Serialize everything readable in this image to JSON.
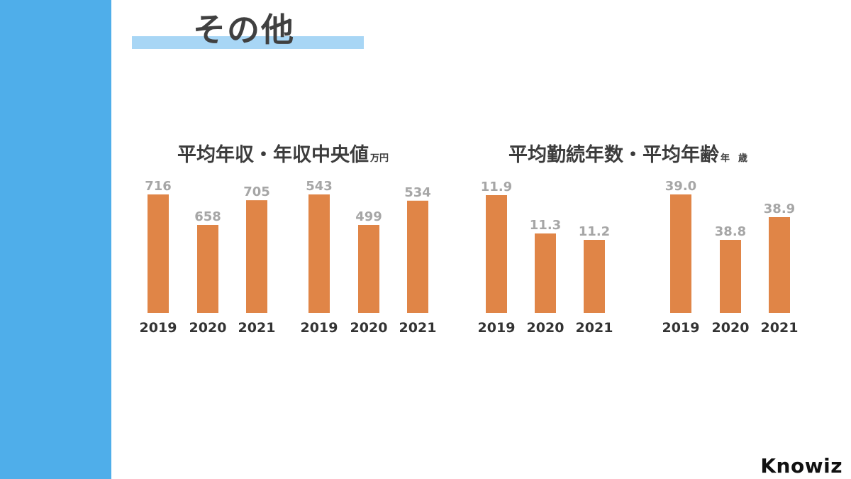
{
  "page": {
    "title": "その他"
  },
  "sections": [
    {
      "title": "平均年収・年収中央値",
      "units": [
        "万円"
      ]
    },
    {
      "title": "平均勤続年数・平均年齢",
      "units": [
        "年",
        "歳"
      ]
    }
  ],
  "brand": "Knowiz",
  "colors": {
    "bar": "#e08547",
    "value_label": "#a6a6a6",
    "axis_label": "#333333",
    "side_bar": "#4faeea",
    "title_underline": "#a8d6f5"
  },
  "chart_data": [
    {
      "type": "bar",
      "categories": [
        "2019",
        "2020",
        "2021"
      ],
      "values": [
        716,
        658,
        705
      ],
      "value_labels": [
        "716",
        "658",
        "705"
      ]
    },
    {
      "type": "bar",
      "categories": [
        "2019",
        "2020",
        "2021"
      ],
      "values": [
        543,
        499,
        534
      ],
      "value_labels": [
        "543",
        "499",
        "534"
      ]
    },
    {
      "type": "bar",
      "categories": [
        "2019",
        "2020",
        "2021"
      ],
      "values": [
        11.9,
        11.3,
        11.2
      ],
      "value_labels": [
        "11.9",
        "11.3",
        "11.2"
      ]
    },
    {
      "type": "bar",
      "categories": [
        "2019",
        "2020",
        "2021"
      ],
      "values": [
        39.0,
        38.8,
        38.9
      ],
      "value_labels": [
        "39.0",
        "38.8",
        "38.9"
      ]
    }
  ]
}
